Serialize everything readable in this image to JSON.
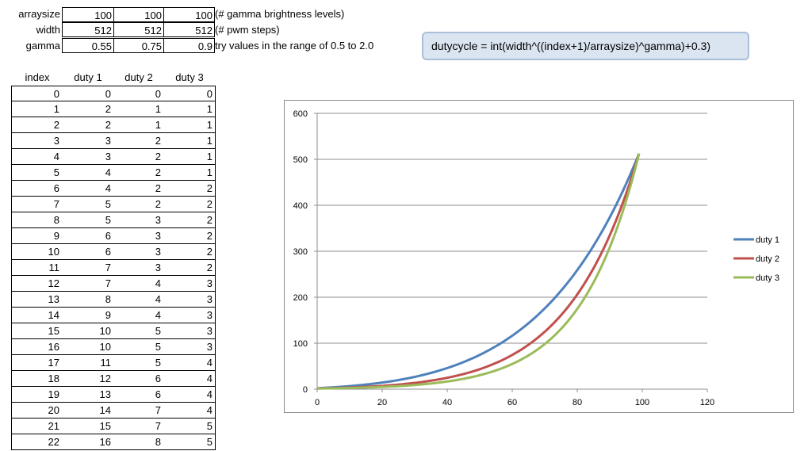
{
  "params": {
    "rows": [
      {
        "label": "arraysize",
        "values": [
          "100",
          "100",
          "100"
        ],
        "note": "(# gamma brightness levels)"
      },
      {
        "label": "width",
        "values": [
          "512",
          "512",
          "512"
        ],
        "note": "(# pwm steps)"
      },
      {
        "label": "gamma",
        "values": [
          "0.55",
          "0.75",
          "0.9"
        ],
        "note": " try values in the range of 0.5 to 2.0"
      }
    ]
  },
  "formula": "dutycycle = int(width^((index+1)/arraysize)^gamma)+0.3)",
  "table": {
    "headers": [
      "index",
      "duty 1",
      "duty 2",
      "duty 3"
    ],
    "rows": [
      [
        "0",
        "0",
        "0",
        "0"
      ],
      [
        "1",
        "2",
        "1",
        "1"
      ],
      [
        "2",
        "2",
        "1",
        "1"
      ],
      [
        "3",
        "3",
        "2",
        "1"
      ],
      [
        "4",
        "3",
        "2",
        "1"
      ],
      [
        "5",
        "4",
        "2",
        "1"
      ],
      [
        "6",
        "4",
        "2",
        "2"
      ],
      [
        "7",
        "5",
        "2",
        "2"
      ],
      [
        "8",
        "5",
        "3",
        "2"
      ],
      [
        "9",
        "6",
        "3",
        "2"
      ],
      [
        "10",
        "6",
        "3",
        "2"
      ],
      [
        "11",
        "7",
        "3",
        "2"
      ],
      [
        "12",
        "7",
        "4",
        "3"
      ],
      [
        "13",
        "8",
        "4",
        "3"
      ],
      [
        "14",
        "9",
        "4",
        "3"
      ],
      [
        "15",
        "10",
        "5",
        "3"
      ],
      [
        "16",
        "10",
        "5",
        "3"
      ],
      [
        "17",
        "11",
        "5",
        "4"
      ],
      [
        "18",
        "12",
        "6",
        "4"
      ],
      [
        "19",
        "13",
        "6",
        "4"
      ],
      [
        "20",
        "14",
        "7",
        "4"
      ],
      [
        "21",
        "15",
        "7",
        "5"
      ],
      [
        "22",
        "16",
        "8",
        "5"
      ]
    ]
  },
  "chart_data": {
    "type": "line",
    "xlim": [
      0,
      120
    ],
    "ylim": [
      0,
      600
    ],
    "x_ticks": [
      "0",
      "20",
      "40",
      "60",
      "80",
      "100",
      "120"
    ],
    "y_ticks": [
      "0",
      "100",
      "200",
      "300",
      "400",
      "500",
      "600"
    ],
    "grid": "horizontal",
    "legend": "right",
    "series": [
      {
        "name": "duty 1",
        "color": "#4f81bd",
        "gamma": 0.55
      },
      {
        "name": "duty 2",
        "color": "#c0504d",
        "gamma": 0.75
      },
      {
        "name": "duty 3",
        "color": "#9bbb59",
        "gamma": 0.9
      }
    ],
    "width": 512,
    "arraysize": 100,
    "points": 100
  }
}
